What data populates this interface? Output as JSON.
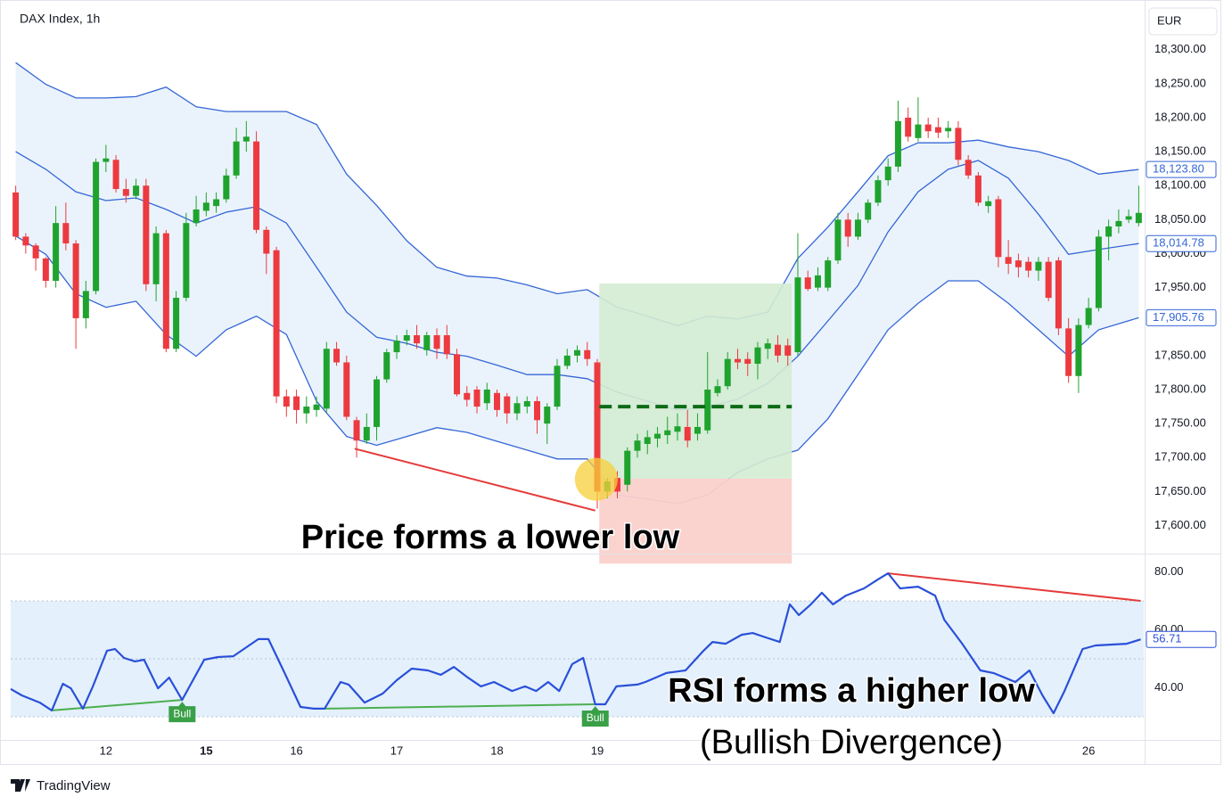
{
  "chart_data": [
    {
      "type": "candlestick",
      "title": "DAX Index, 1h",
      "currency": "EUR",
      "x": [
        0,
        1,
        2,
        3,
        4,
        5,
        6,
        7,
        8,
        9,
        10,
        11,
        12,
        13,
        14,
        15,
        16,
        17,
        18,
        19,
        20,
        21,
        22,
        23,
        24,
        25,
        26,
        27,
        28,
        29,
        30,
        31,
        32,
        33,
        34,
        35,
        36,
        37,
        38,
        39,
        40,
        41,
        42,
        43,
        44,
        45,
        46,
        47,
        48,
        49,
        50,
        51,
        52,
        53,
        54,
        55,
        56,
        57,
        58,
        59,
        60,
        61,
        62,
        63,
        64,
        65,
        66,
        67,
        68,
        69,
        70,
        71,
        72,
        73,
        74,
        75,
        76,
        77,
        78,
        79,
        80,
        81,
        82,
        83,
        84,
        85,
        86,
        87,
        88,
        89,
        90,
        91,
        92,
        93,
        94,
        95,
        96,
        97,
        98,
        99,
        100,
        101,
        102,
        103,
        104,
        105,
        106,
        107,
        108,
        109,
        110,
        111,
        112
      ],
      "open": [
        18090,
        18025,
        18012,
        17993,
        17960,
        18045,
        18015,
        17905,
        17945,
        18135,
        18138,
        18095,
        18085,
        18100,
        17955,
        18030,
        17860,
        17935,
        18045,
        18063,
        18070,
        18080,
        18115,
        18165,
        18165,
        18035,
        18005,
        17790,
        17790,
        17765,
        17770,
        17772,
        17860,
        17840,
        17755,
        17725,
        17745,
        17815,
        17855,
        17872,
        17880,
        17858,
        17880,
        17880,
        17852,
        17795,
        17800,
        17780,
        17795,
        17790,
        17765,
        17775,
        17783,
        17750,
        17775,
        17835,
        17850,
        17858,
        17840,
        17650,
        17670,
        17660,
        17710,
        17720,
        17728,
        17733,
        17738,
        17745,
        17735,
        17740,
        17795,
        17805,
        17845,
        17845,
        17838,
        17860,
        17866,
        17865,
        17855,
        17965,
        17950,
        17950,
        17990,
        18050,
        18025,
        18050,
        18075,
        18108,
        18128,
        18200,
        18170,
        18190,
        18186,
        18180,
        18185,
        18138,
        18115,
        18070,
        18080,
        17995,
        17990,
        17988,
        17975,
        17988,
        17990,
        17890,
        17820,
        17895,
        17920,
        18025,
        18040,
        18050,
        18045
      ],
      "high": [
        18100,
        18030,
        18015,
        17995,
        18070,
        18075,
        18020,
        17960,
        18140,
        18160,
        18145,
        18110,
        18110,
        18110,
        18040,
        18035,
        17945,
        18060,
        18085,
        18090,
        18090,
        18125,
        18185,
        18195,
        18180,
        18040,
        18010,
        17800,
        17800,
        17790,
        17790,
        17870,
        17870,
        17850,
        17760,
        17765,
        17820,
        17860,
        17880,
        17888,
        17895,
        17885,
        17890,
        17895,
        17860,
        17805,
        17805,
        17810,
        17800,
        17795,
        17790,
        17790,
        17790,
        17780,
        17845,
        17860,
        17865,
        17870,
        17845,
        17670,
        17680,
        17715,
        17735,
        17740,
        17745,
        17760,
        17765,
        17770,
        17765,
        17855,
        17815,
        17855,
        17860,
        17855,
        17870,
        17875,
        17880,
        17875,
        18030,
        17975,
        17980,
        17995,
        18060,
        18060,
        18060,
        18080,
        18115,
        18140,
        18225,
        18215,
        18230,
        18200,
        18200,
        18195,
        18195,
        18145,
        18120,
        18085,
        18085,
        18020,
        18000,
        17995,
        17995,
        17995,
        17995,
        17905,
        17905,
        17935,
        18035,
        18050,
        18065,
        18065,
        18100
      ],
      "low": [
        18020,
        18000,
        17975,
        17950,
        17950,
        18005,
        17860,
        17890,
        17940,
        18120,
        18090,
        18075,
        18080,
        17945,
        17930,
        17855,
        17855,
        17930,
        18040,
        18055,
        18060,
        18075,
        18110,
        18150,
        18030,
        17970,
        17780,
        17760,
        17750,
        17750,
        17760,
        17765,
        17835,
        17755,
        17700,
        17720,
        17725,
        17810,
        17845,
        17865,
        17860,
        17850,
        17845,
        17845,
        17790,
        17775,
        17765,
        17770,
        17760,
        17750,
        17755,
        17765,
        17735,
        17720,
        17770,
        17830,
        17840,
        17835,
        17625,
        17640,
        17640,
        17650,
        17700,
        17705,
        17715,
        17720,
        17725,
        17715,
        17725,
        17735,
        17790,
        17800,
        17830,
        17820,
        17815,
        17845,
        17840,
        17835,
        17850,
        17945,
        17945,
        17945,
        17985,
        18010,
        18020,
        18045,
        18070,
        18100,
        18120,
        18165,
        18165,
        18170,
        18170,
        18170,
        18130,
        18110,
        18070,
        18060,
        17980,
        17970,
        17965,
        17965,
        17960,
        17930,
        17880,
        17810,
        17795,
        17890,
        17915,
        17990,
        18030,
        18045,
        18040
      ],
      "close": [
        18025,
        18012,
        17993,
        17960,
        18045,
        18015,
        17905,
        17945,
        18135,
        18140,
        18095,
        18085,
        18100,
        17955,
        18030,
        17860,
        17935,
        18045,
        18065,
        18075,
        18080,
        18115,
        18165,
        18172,
        18035,
        18000,
        17790,
        17775,
        17770,
        17775,
        17778,
        17860,
        17840,
        17760,
        17725,
        17745,
        17815,
        17855,
        17872,
        17880,
        17868,
        17880,
        17860,
        17852,
        17793,
        17785,
        17775,
        17800,
        17770,
        17765,
        17780,
        17783,
        17755,
        17775,
        17835,
        17850,
        17858,
        17845,
        17650,
        17665,
        17650,
        17710,
        17725,
        17730,
        17735,
        17740,
        17746,
        17725,
        17745,
        17800,
        17805,
        17845,
        17840,
        17838,
        17862,
        17868,
        17850,
        17850,
        17965,
        17948,
        17968,
        17990,
        18050,
        18025,
        18050,
        18075,
        18108,
        18128,
        18195,
        18172,
        18190,
        18180,
        18178,
        18185,
        18138,
        18115,
        18075,
        18077,
        17995,
        17985,
        17980,
        17975,
        17988,
        17935,
        17890,
        17820,
        17895,
        17920,
        18025,
        18040,
        18048,
        18055,
        18060
      ],
      "up_color": "#1fa32e",
      "down_color": "#ec3a40",
      "xlim": [
        -0.5,
        112.5
      ],
      "ylim": [
        17560,
        18360
      ],
      "yticks": [
        {
          "value": 18300,
          "label": "18,300.00"
        },
        {
          "value": 18250,
          "label": "18,250.00"
        },
        {
          "value": 18200,
          "label": "18,200.00"
        },
        {
          "value": 18150,
          "label": "18,150.00"
        },
        {
          "value": 18100,
          "label": "18,100.00"
        },
        {
          "value": 18050,
          "label": "18,050.00"
        },
        {
          "value": 18000,
          "label": "18,000.00"
        },
        {
          "value": 17950,
          "label": "17,950.00"
        },
        {
          "value": 17900,
          "label": "17,900.00"
        },
        {
          "value": 17850,
          "label": "17,850.00"
        },
        {
          "value": 17800,
          "label": "17,800.00"
        },
        {
          "value": 17750,
          "label": "17,750.00"
        },
        {
          "value": 17700,
          "label": "17,700.00"
        },
        {
          "value": 17650,
          "label": "17,650.00"
        },
        {
          "value": 17600,
          "label": "17,600.00"
        }
      ],
      "bands": {
        "color": "#3566d6",
        "fill": "#eaf3fb",
        "x": [
          0,
          3,
          6,
          9,
          12,
          15,
          18,
          21,
          24,
          27,
          30,
          33,
          36,
          39,
          42,
          45,
          48,
          51,
          54,
          57,
          60,
          63,
          66,
          69,
          72,
          75,
          78,
          81,
          84,
          87,
          90,
          93,
          96,
          99,
          102,
          105,
          108,
          112
        ],
        "upper": [
          18281,
          18249,
          18229,
          18229,
          18231,
          18245,
          18216,
          18209,
          18209,
          18209,
          18190,
          18117,
          18071,
          18019,
          17980,
          17967,
          17964,
          17954,
          17941,
          17947,
          17921,
          17908,
          17894,
          17908,
          17904,
          17914,
          17993,
          18039,
          18091,
          18144,
          18163,
          18163,
          18167,
          18157,
          18150,
          18137,
          18117,
          18123.8
        ],
        "middle": [
          18150,
          18124,
          18091,
          18078,
          18082,
          18065,
          18045,
          18061,
          18069,
          18045,
          17980,
          17914,
          17877,
          17868,
          17855,
          17849,
          17836,
          17822,
          17822,
          17816,
          17796,
          17783,
          17770,
          17774,
          17786,
          17809,
          17849,
          17901,
          17953,
          18032,
          18091,
          18124,
          18137,
          18111,
          18058,
          17999,
          18006,
          18014.78
        ],
        "lower": [
          18026,
          17999,
          17941,
          17921,
          17930,
          17881,
          17849,
          17888,
          17908,
          17881,
          17783,
          17731,
          17718,
          17731,
          17744,
          17737,
          17724,
          17711,
          17698,
          17698,
          17645,
          17639,
          17632,
          17645,
          17678,
          17698,
          17711,
          17757,
          17822,
          17888,
          17927,
          17960,
          17960,
          17927,
          17888,
          17849,
          17888,
          17905.76
        ]
      },
      "markers": [
        {
          "value": 18123.8,
          "label": "18,123.80"
        },
        {
          "value": 18014.78,
          "label": "18,014.78"
        },
        {
          "value": 17905.76,
          "label": "17,905.76"
        }
      ],
      "position": {
        "x": [
          58.2,
          77.4
        ],
        "target": 17956,
        "entry": 17669,
        "stop": 17544,
        "level": 17775,
        "profit_color": "#d4ecd3",
        "loss_color": "#fbd1cb",
        "level_color": "#0b6b16"
      },
      "trendline": {
        "x": [
          33.8,
          57.8
        ],
        "values": [
          17713,
          17622
        ],
        "color": "#e53b3b"
      },
      "highlight": {
        "x": 57.9,
        "value": 17668,
        "color": "#f7cf3a"
      },
      "annotations": [
        {
          "text": "Price forms a lower low"
        }
      ]
    },
    {
      "type": "line",
      "color": "#2a50d8",
      "xlim": [
        -0.5,
        112.5
      ],
      "xticks": [
        {
          "value": 9,
          "label": "12"
        },
        {
          "value": 19,
          "label": "15",
          "bold": true
        },
        {
          "value": 28,
          "label": "16"
        },
        {
          "value": 38,
          "label": "17"
        },
        {
          "value": 48,
          "label": "18"
        },
        {
          "value": 58,
          "label": "19"
        },
        {
          "value": 107,
          "label": "26"
        }
      ],
      "ylim": [
        22,
        86
      ],
      "yticks": [
        {
          "value": 80,
          "label": "80.00"
        },
        {
          "value": 60,
          "label": "60.00"
        },
        {
          "value": 40,
          "label": "40.00"
        }
      ],
      "band": [
        30,
        70
      ],
      "band_color": "#e4f0fc",
      "mid": 50,
      "x": [
        -0.5,
        0.6,
        2.4,
        3.6,
        4.7,
        5.5,
        6.7,
        7.7,
        9.1,
        9.9,
        10.8,
        11.9,
        12.8,
        14.2,
        15.3,
        16.6,
        18.8,
        20.2,
        21.7,
        24.2,
        25.2,
        26.7,
        28.4,
        29.7,
        30.8,
        32.4,
        33.2,
        34.8,
        36.6,
        38.0,
        39.5,
        41.1,
        42.4,
        43.7,
        45.1,
        46.4,
        47.7,
        49.5,
        50.8,
        51.9,
        53.1,
        54.2,
        55.5,
        56.6,
        57.8,
        58.8,
        59.9,
        62.0,
        62.8,
        64.9,
        66.8,
        68.6,
        69.5,
        70.8,
        72.4,
        73.5,
        74.8,
        76.2,
        77.2,
        78.1,
        79.3,
        80.4,
        81.5,
        82.8,
        84.6,
        86.0,
        87.0,
        88.2,
        90.0,
        91.7,
        92.6,
        94.4,
        96.2,
        97.5,
        99.7,
        101.1,
        102.4,
        103.5,
        104.6,
        106.4,
        107.7,
        110.8,
        112.2
      ],
      "values": [
        39.6,
        37.4,
        34.9,
        32.2,
        41.4,
        39.8,
        32.8,
        40.5,
        52.8,
        53.4,
        50.3,
        49.1,
        49.7,
        39.8,
        43.5,
        35.8,
        49.7,
        50.6,
        50.9,
        56.8,
        56.8,
        46.0,
        33.4,
        32.8,
        32.8,
        42.0,
        41.1,
        34.9,
        38.0,
        42.6,
        46.6,
        46.0,
        44.5,
        47.2,
        43.5,
        40.5,
        42.0,
        38.9,
        40.5,
        38.9,
        42.0,
        38.9,
        48.2,
        50.3,
        34.3,
        34.3,
        40.5,
        41.1,
        42.0,
        45.1,
        46.0,
        52.8,
        55.8,
        55.2,
        58.3,
        58.9,
        57.4,
        55.8,
        68.8,
        65.1,
        68.8,
        72.8,
        68.8,
        71.8,
        74.3,
        77.4,
        79.5,
        74.3,
        74.9,
        71.8,
        63.5,
        55.2,
        46.0,
        45.1,
        42.0,
        46.0,
        37.4,
        31.2,
        38.9,
        53.4,
        54.6,
        55.2,
        56.71
      ],
      "last_marker": {
        "value": 56.71,
        "label": "56.71"
      },
      "lines": [
        {
          "x": [
            3.6,
            16.6
          ],
          "values": [
            32.2,
            35.8
          ],
          "color": "#4caf50"
        },
        {
          "x": [
            30.8,
            57.8
          ],
          "values": [
            32.8,
            34.3
          ],
          "color": "#4caf50"
        },
        {
          "x": [
            87.0,
            112.2
          ],
          "values": [
            79.5,
            70.0
          ],
          "color": "#e53b3b"
        }
      ],
      "signals": [
        {
          "text": "Bull",
          "x": 16.6,
          "value": 35.8,
          "color": "#3aa047"
        },
        {
          "text": "Bull",
          "x": 57.8,
          "value": 34.3,
          "color": "#3aa047"
        }
      ],
      "annotations": [
        {
          "text": "RSI forms a higher low"
        },
        {
          "text": "(Bullish Divergence)"
        }
      ]
    }
  ],
  "footer": {
    "brand": "TradingView"
  }
}
